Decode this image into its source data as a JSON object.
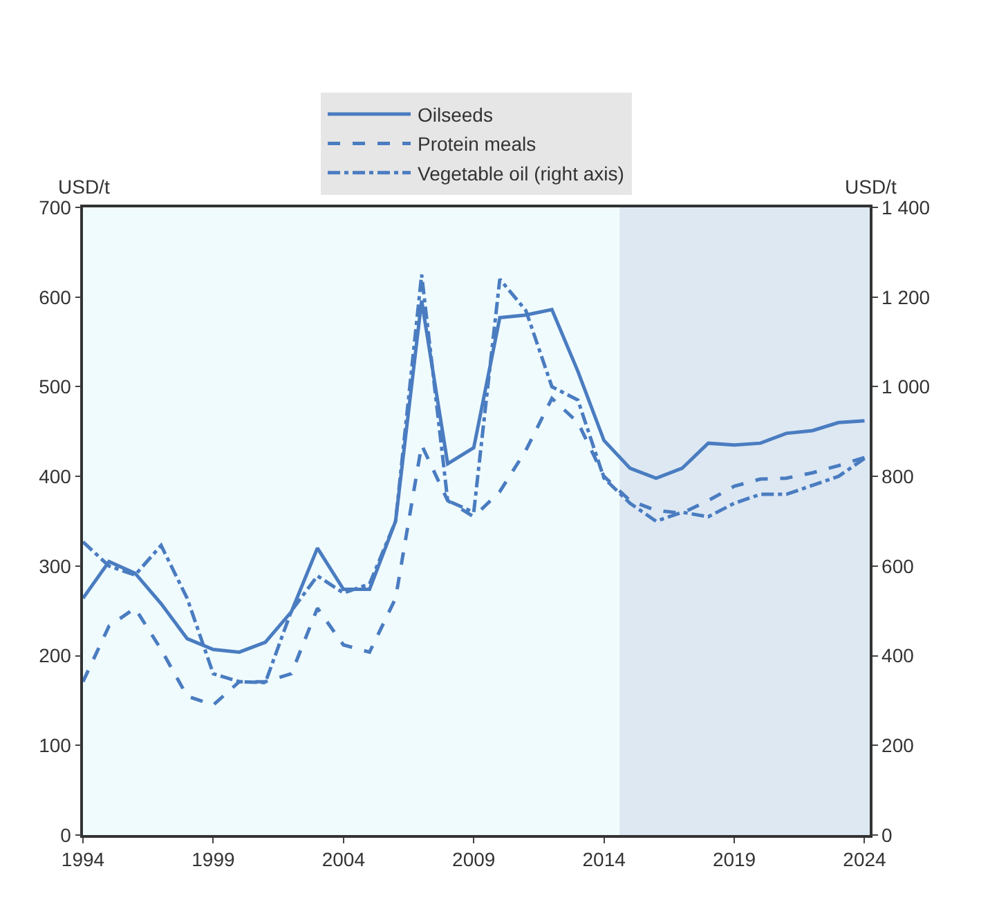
{
  "chart_data": {
    "type": "line",
    "ylabel": "USD/t",
    "y2label": "USD/t",
    "x": [
      1994,
      1995,
      1996,
      1997,
      1998,
      1999,
      2000,
      2001,
      2002,
      2003,
      2004,
      2005,
      2006,
      2007,
      2008,
      2009,
      2010,
      2011,
      2012,
      2013,
      2014,
      2015,
      2016,
      2017,
      2018,
      2019,
      2020,
      2021,
      2022,
      2023,
      2024
    ],
    "series": [
      {
        "name": "Oilseeds",
        "color": "#4a7cc0",
        "line_style": "solid",
        "values": [
          264,
          305,
          292,
          258,
          219,
          207,
          204,
          215,
          249,
          320,
          274,
          274,
          350,
          596,
          414,
          432,
          577,
          580,
          586,
          517,
          440,
          409,
          398,
          409,
          437,
          435,
          437,
          448,
          451,
          460,
          462
        ]
      },
      {
        "name": "Protein meals",
        "color": "#4a7cc0",
        "line_style": "dashed",
        "values": [
          171,
          233,
          253,
          207,
          155,
          145,
          171,
          171,
          180,
          253,
          212,
          204,
          264,
          435,
          373,
          355,
          383,
          429,
          487,
          460,
          400,
          373,
          362,
          359,
          373,
          389,
          397,
          398,
          404,
          412,
          421
        ]
      },
      {
        "name": "Vegetable oil (right axis)",
        "color": "#4a7cc0",
        "line_style": "dashdot",
        "axis": "y2",
        "values": [
          654,
          600,
          580,
          646,
          528,
          360,
          342,
          340,
          500,
          578,
          540,
          560,
          700,
          1250,
          746,
          720,
          1240,
          1170,
          1000,
          970,
          796,
          740,
          700,
          720,
          710,
          740,
          760,
          760,
          780,
          800,
          840
        ]
      }
    ],
    "xlim": [
      1994,
      2024.2
    ],
    "xticks": [
      1994,
      1999,
      2004,
      2009,
      2014,
      2019,
      2024
    ],
    "ylim": [
      0,
      700
    ],
    "yticks": [
      0,
      100,
      200,
      300,
      400,
      500,
      600,
      700
    ],
    "y2lim": [
      0,
      1400
    ],
    "y2ticks": [
      0,
      200,
      400,
      600,
      800,
      {
        "value": 1000,
        "label": "1 000"
      },
      {
        "value": 1200,
        "label": "1 200"
      },
      {
        "value": 1400,
        "label": "1 400"
      }
    ],
    "bands": [
      {
        "axis": "x",
        "from": 2014.6,
        "to": 2024.2,
        "color": "#dde8f3"
      }
    ],
    "grid": false,
    "legend": "top",
    "marker": "none"
  }
}
